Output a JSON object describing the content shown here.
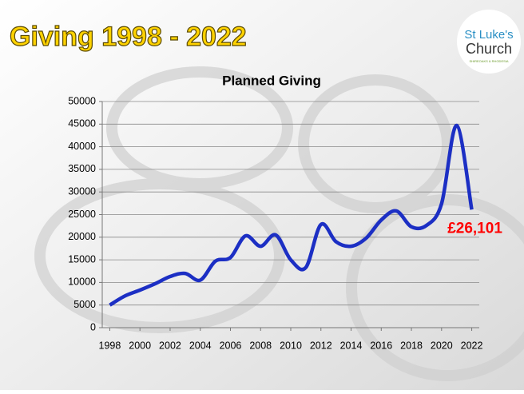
{
  "slide": {
    "title": "Giving 1998 - 2022"
  },
  "logo": {
    "line1": "St Luke's",
    "line2": "Church",
    "subtitle": "SHIREOAKS & RHODESIA"
  },
  "chart_data": {
    "type": "line",
    "title": "Planned Giving",
    "x": [
      1998,
      1999,
      2000,
      2001,
      2002,
      2003,
      2004,
      2005,
      2006,
      2007,
      2008,
      2009,
      2010,
      2011,
      2012,
      2013,
      2014,
      2015,
      2016,
      2017,
      2018,
      2019,
      2020,
      2021,
      2022
    ],
    "series": [
      {
        "name": "Planned Giving",
        "color": "#1c2fc4",
        "values": [
          5000,
          7000,
          8300,
          9700,
          11300,
          12000,
          10500,
          14700,
          15500,
          20300,
          18000,
          20500,
          15000,
          13300,
          22800,
          19000,
          18000,
          19800,
          23800,
          25800,
          22300,
          22600,
          27400,
          44700,
          26101
        ],
        "value_labels": [
          null,
          null,
          null,
          null,
          null,
          null,
          null,
          null,
          null,
          null,
          null,
          null,
          null,
          null,
          null,
          null,
          null,
          null,
          null,
          null,
          null,
          null,
          null,
          null,
          "£26,101"
        ]
      }
    ],
    "xlim": [
      1997.5,
      2022.5
    ],
    "xticks": [
      1998,
      2000,
      2002,
      2004,
      2006,
      2008,
      2010,
      2012,
      2014,
      2016,
      2018,
      2020,
      2022
    ],
    "ylim": [
      0,
      50000
    ],
    "yticks": [
      0,
      5000,
      10000,
      15000,
      20000,
      25000,
      30000,
      35000,
      40000,
      45000,
      50000
    ],
    "grid": true
  }
}
